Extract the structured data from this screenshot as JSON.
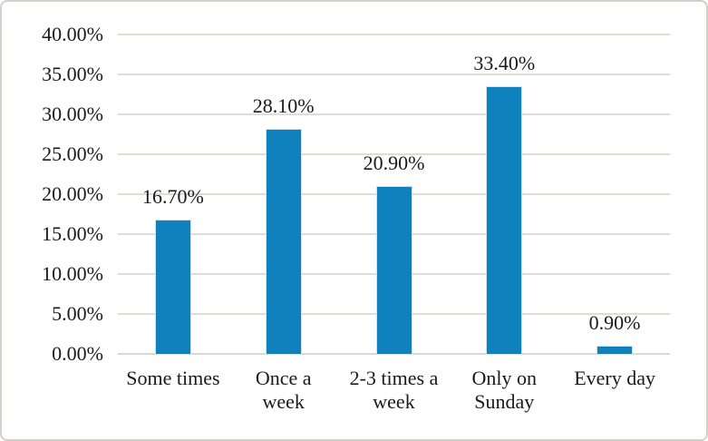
{
  "chart_data": {
    "type": "bar",
    "title": "",
    "xlabel": "",
    "ylabel": "",
    "categories": [
      "Some times",
      "Once a\nweek",
      "2-3 times a\nweek",
      "Only on\nSunday",
      "Every day"
    ],
    "values": [
      16.7,
      28.1,
      20.9,
      33.4,
      0.9
    ],
    "data_labels": [
      "16.70%",
      "28.10%",
      "20.90%",
      "33.40%",
      "0.90%"
    ],
    "y_tick_labels": [
      "40.00%",
      "35.00%",
      "30.00%",
      "25.00%",
      "20.00%",
      "15.00%",
      "10.00%",
      "5.00%",
      "0.00%"
    ],
    "ylim": [
      0,
      40
    ],
    "y_tick_step": 5,
    "grid": true,
    "legend": "none",
    "colors": {
      "bar": "#0f81bc",
      "bar_edge": "#cfe3ef",
      "gridline": "#e0ddd8",
      "axis_line": "#dbd8d2",
      "text": "#1a1a1a",
      "frame_border": "#d3d0ca",
      "background": "#ffffff"
    }
  }
}
